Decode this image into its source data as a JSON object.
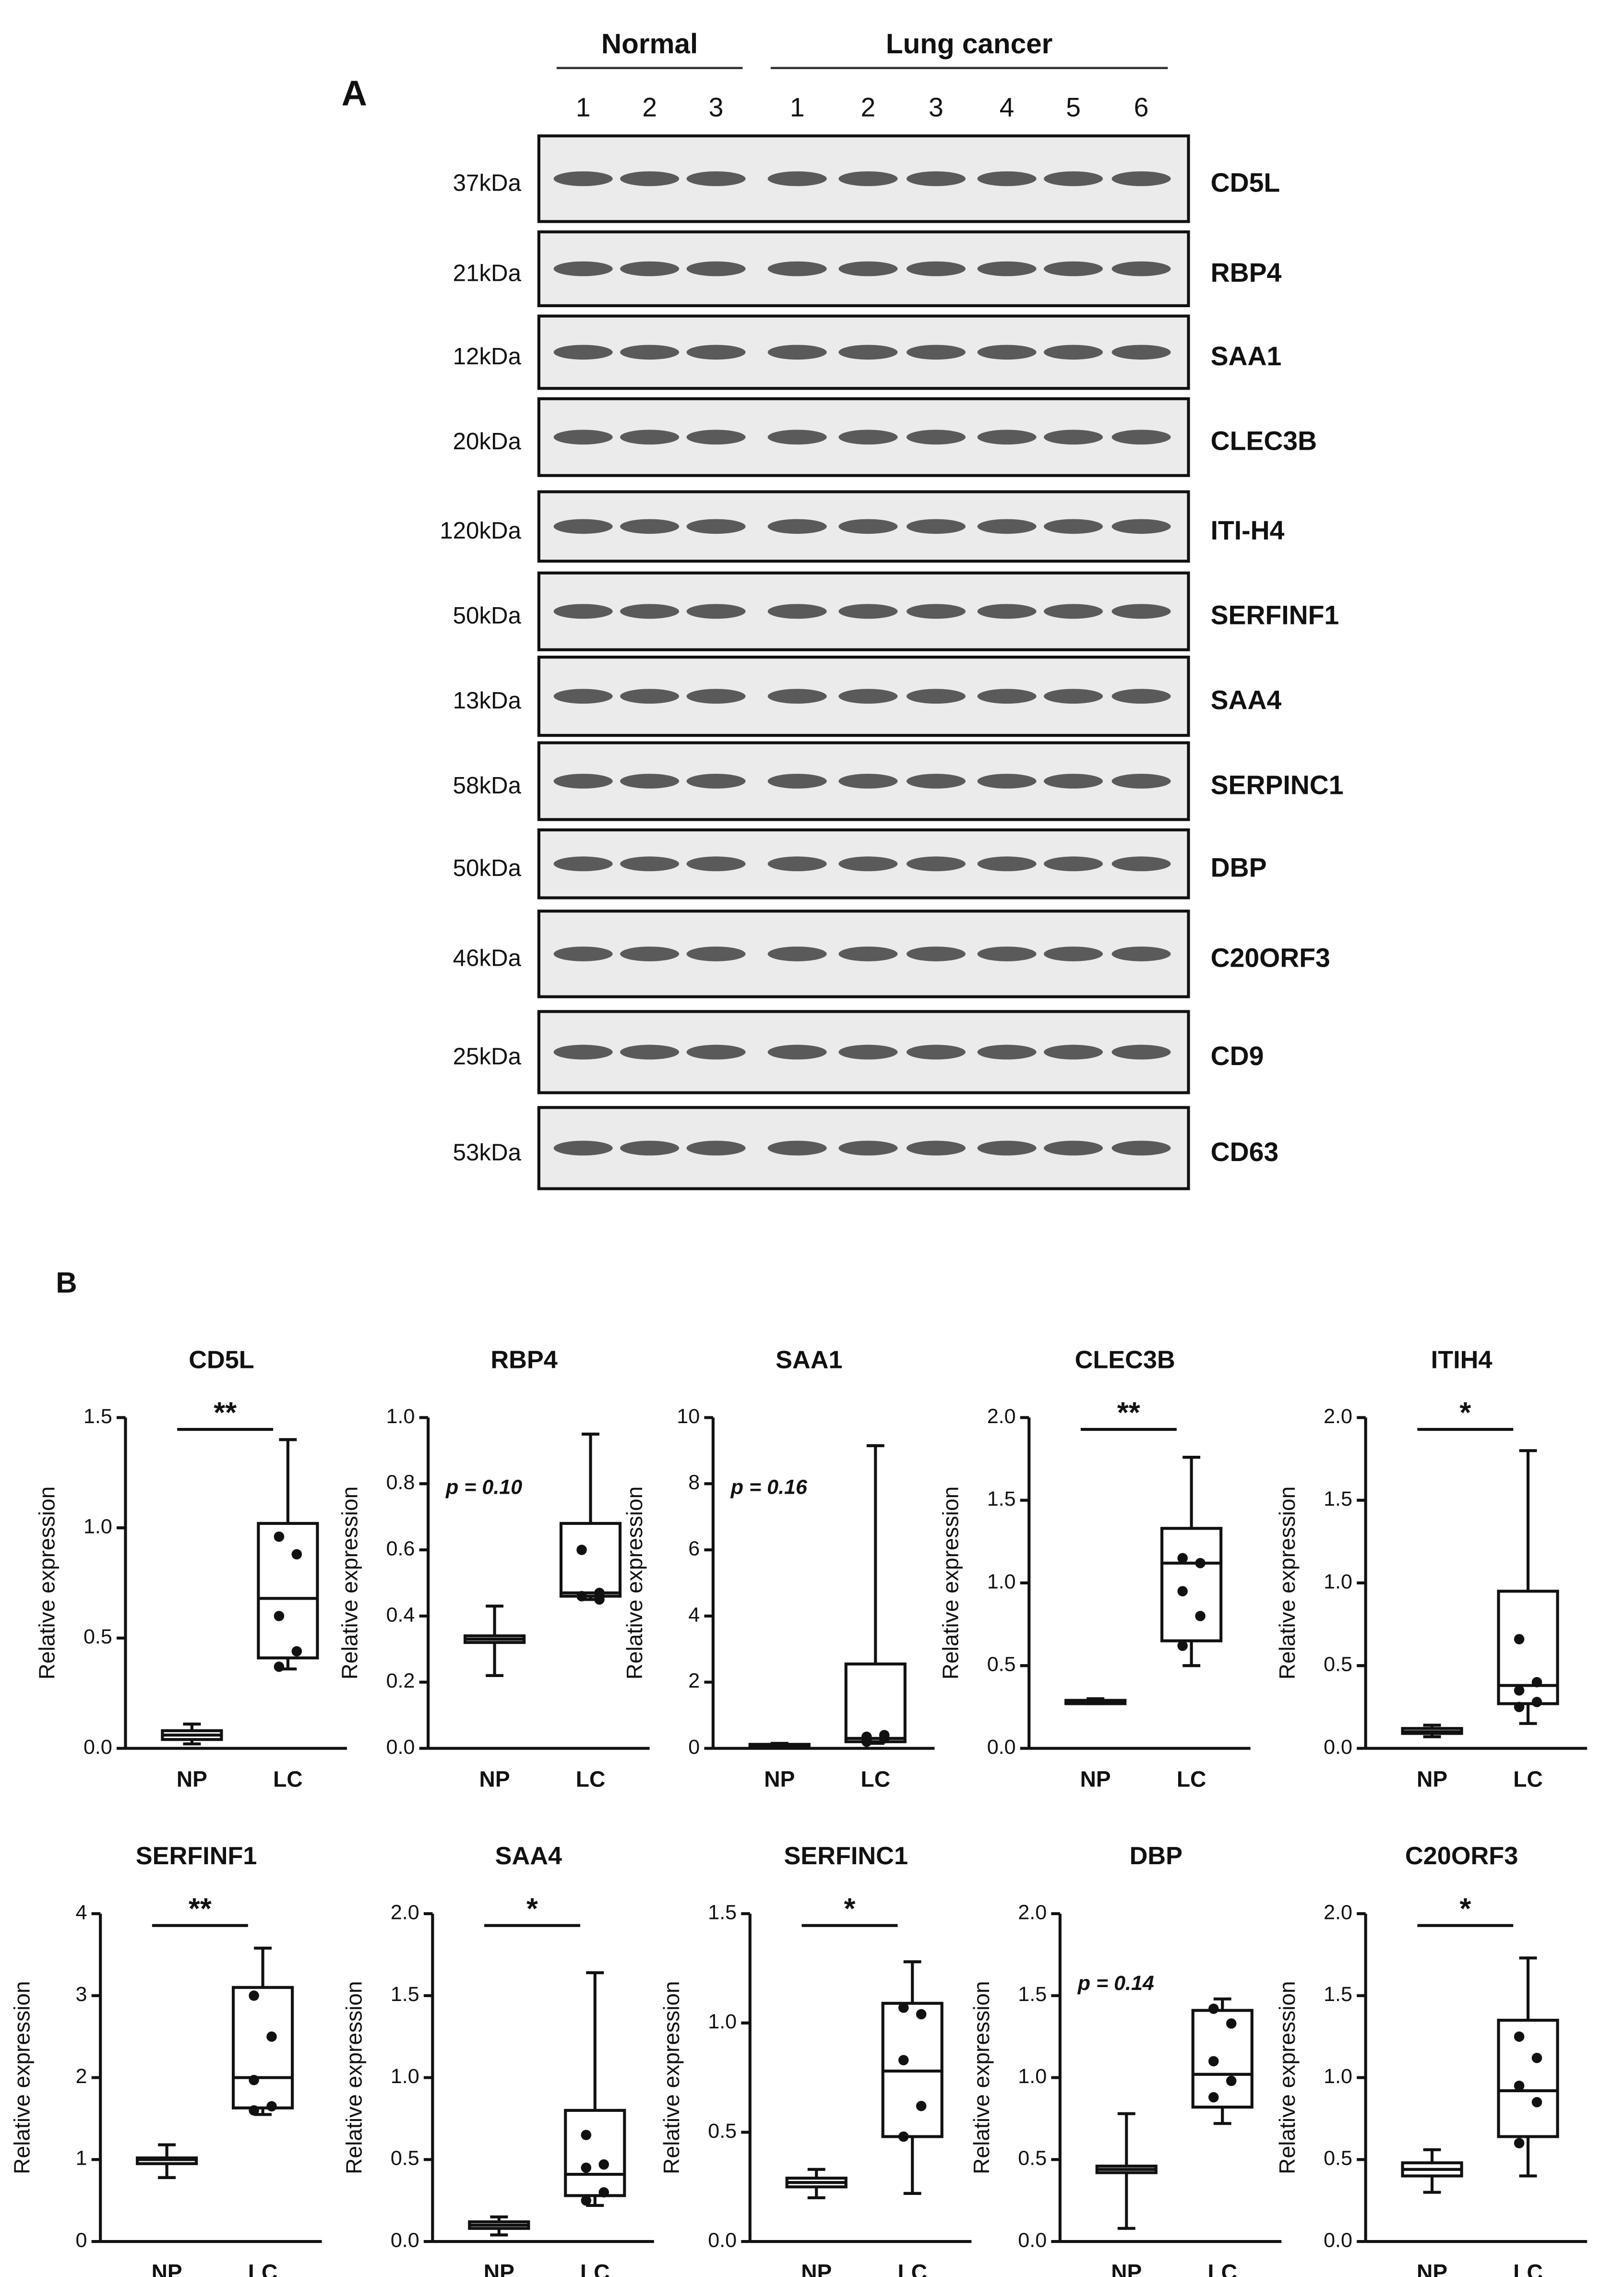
{
  "panel_a": {
    "label": "A",
    "groups": [
      "Normal",
      "Lung cancer"
    ],
    "lanes": [
      "1",
      "2",
      "3",
      "1",
      "2",
      "3",
      "4",
      "5",
      "6"
    ],
    "blots": [
      {
        "kda": "37kDa",
        "protein": "CD5L"
      },
      {
        "kda": "21kDa",
        "protein": "RBP4"
      },
      {
        "kda": "12kDa",
        "protein": "SAA1"
      },
      {
        "kda": "20kDa",
        "protein": "CLEC3B"
      },
      {
        "kda": "120kDa",
        "protein": "ITI-H4"
      },
      {
        "kda": "50kDa",
        "protein": "SERFINF1"
      },
      {
        "kda": "13kDa",
        "protein": "SAA4"
      },
      {
        "kda": "58kDa",
        "protein": "SERPINC1"
      },
      {
        "kda": "50kDa",
        "protein": "DBP"
      },
      {
        "kda": "46kDa",
        "protein": "C20ORF3"
      },
      {
        "kda": "25kDa",
        "protein": "CD9"
      },
      {
        "kda": "53kDa",
        "protein": "CD63"
      }
    ]
  },
  "panel_b": {
    "label": "B"
  },
  "chart_data": [
    {
      "type": "box",
      "title": "CD5L",
      "y_label": "Relative expression",
      "categories": [
        "NP",
        "LC"
      ],
      "ylim": [
        0,
        1.5
      ],
      "yticks": [
        {
          "value": 0,
          "label": "0.0"
        },
        0.5,
        {
          "value": 1,
          "label": "1.0"
        },
        1.5
      ],
      "annotation": "**",
      "significance_bar": true,
      "boxes": [
        {
          "min": 0.02,
          "q1": 0.04,
          "median": 0.06,
          "q3": 0.08,
          "max": 0.11,
          "points": []
        },
        {
          "min": 0.36,
          "q1": 0.41,
          "median": 0.68,
          "q3": 1.02,
          "max": 1.4,
          "points": [
            0.96,
            0.88,
            0.6,
            0.44,
            0.37
          ]
        }
      ]
    },
    {
      "type": "box",
      "title": "RBP4",
      "y_label": "Relative expression",
      "categories": [
        "NP",
        "LC"
      ],
      "ylim": [
        0,
        1
      ],
      "yticks": [
        {
          "value": 0,
          "label": "0.0"
        },
        0.2,
        0.4,
        0.6,
        0.8,
        {
          "value": 1,
          "label": "1.0"
        }
      ],
      "annotation": "p = 0.10",
      "significance_bar": false,
      "boxes": [
        {
          "min": 0.22,
          "q1": 0.32,
          "median": 0.33,
          "q3": 0.34,
          "max": 0.43,
          "points": []
        },
        {
          "min": 0.45,
          "q1": 0.46,
          "median": 0.47,
          "q3": 0.68,
          "max": 0.95,
          "points": [
            0.6,
            0.47,
            0.46,
            0.45,
            0.46
          ]
        }
      ]
    },
    {
      "type": "box",
      "title": "SAA1",
      "y_label": "Relative expression",
      "categories": [
        "NP",
        "LC"
      ],
      "ylim": [
        0,
        10
      ],
      "yticks": [
        0,
        2,
        4,
        6,
        8,
        10
      ],
      "annotation": "p = 0.16",
      "significance_bar": false,
      "boxes": [
        {
          "min": 0.05,
          "q1": 0.07,
          "median": 0.1,
          "q3": 0.12,
          "max": 0.15,
          "points": []
        },
        {
          "min": 0.15,
          "q1": 0.2,
          "median": 0.3,
          "q3": 2.55,
          "max": 9.15,
          "points": [
            0.2,
            0.3,
            0.35,
            0.4,
            0.25
          ]
        }
      ]
    },
    {
      "type": "box",
      "title": "CLEC3B",
      "y_label": "Relative expression",
      "categories": [
        "NP",
        "LC"
      ],
      "ylim": [
        0,
        2
      ],
      "yticks": [
        {
          "value": 0,
          "label": "0.0"
        },
        0.5,
        {
          "value": 1,
          "label": "1.0"
        },
        1.5,
        {
          "value": 2,
          "label": "2.0"
        }
      ],
      "annotation": "**",
      "significance_bar": true,
      "boxes": [
        {
          "min": 0.27,
          "q1": 0.27,
          "median": 0.28,
          "q3": 0.29,
          "max": 0.3,
          "points": []
        },
        {
          "min": 0.5,
          "q1": 0.65,
          "median": 1.12,
          "q3": 1.33,
          "max": 1.76,
          "points": [
            1.15,
            1.12,
            0.95,
            0.8,
            0.62
          ]
        }
      ]
    },
    {
      "type": "box",
      "title": "ITIH4",
      "y_label": "Relative expression",
      "categories": [
        "NP",
        "LC"
      ],
      "ylim": [
        0,
        2
      ],
      "yticks": [
        {
          "value": 0,
          "label": "0.0"
        },
        0.5,
        {
          "value": 1,
          "label": "1.0"
        },
        1.5,
        {
          "value": 2,
          "label": "2.0"
        }
      ],
      "annotation": "*",
      "significance_bar": true,
      "boxes": [
        {
          "min": 0.07,
          "q1": 0.09,
          "median": 0.1,
          "q3": 0.12,
          "max": 0.14,
          "points": []
        },
        {
          "min": 0.15,
          "q1": 0.27,
          "median": 0.38,
          "q3": 0.95,
          "max": 1.8,
          "points": [
            0.66,
            0.4,
            0.35,
            0.28,
            0.25
          ]
        }
      ]
    },
    {
      "type": "box",
      "title": "SERFINF1",
      "y_label": "Relative expression",
      "categories": [
        "NP",
        "LC"
      ],
      "ylim": [
        0,
        4
      ],
      "yticks": [
        0,
        1,
        2,
        3,
        4
      ],
      "annotation": "**",
      "significance_bar": true,
      "boxes": [
        {
          "min": 0.78,
          "q1": 0.95,
          "median": 1.0,
          "q3": 1.02,
          "max": 1.18,
          "points": []
        },
        {
          "min": 1.55,
          "q1": 1.63,
          "median": 2.0,
          "q3": 3.1,
          "max": 3.58,
          "points": [
            3.0,
            2.5,
            1.97,
            1.65,
            1.6
          ]
        }
      ]
    },
    {
      "type": "box",
      "title": "SAA4",
      "y_label": "Relative expression",
      "categories": [
        "NP",
        "LC"
      ],
      "ylim": [
        0,
        2
      ],
      "yticks": [
        {
          "value": 0,
          "label": "0.0"
        },
        0.5,
        {
          "value": 1,
          "label": "1.0"
        },
        1.5,
        {
          "value": 2,
          "label": "2.0"
        }
      ],
      "annotation": "*",
      "significance_bar": true,
      "boxes": [
        {
          "min": 0.04,
          "q1": 0.08,
          "median": 0.1,
          "q3": 0.12,
          "max": 0.15,
          "points": []
        },
        {
          "min": 0.22,
          "q1": 0.28,
          "median": 0.41,
          "q3": 0.8,
          "max": 1.64,
          "points": [
            0.65,
            0.47,
            0.45,
            0.3,
            0.25
          ]
        }
      ]
    },
    {
      "type": "box",
      "title": "SERFINC1",
      "y_label": "Relative expression",
      "categories": [
        "NP",
        "LC"
      ],
      "ylim": [
        0,
        1.5
      ],
      "yticks": [
        {
          "value": 0,
          "label": "0.0"
        },
        0.5,
        {
          "value": 1,
          "label": "1.0"
        },
        1.5
      ],
      "annotation": "*",
      "significance_bar": true,
      "boxes": [
        {
          "min": 0.2,
          "q1": 0.25,
          "median": 0.27,
          "q3": 0.29,
          "max": 0.33,
          "points": []
        },
        {
          "min": 0.22,
          "q1": 0.48,
          "median": 0.78,
          "q3": 1.09,
          "max": 1.28,
          "points": [
            1.07,
            1.04,
            0.83,
            0.62,
            0.48
          ]
        }
      ]
    },
    {
      "type": "box",
      "title": "DBP",
      "y_label": "Relative expression",
      "categories": [
        "NP",
        "LC"
      ],
      "ylim": [
        0,
        2
      ],
      "yticks": [
        {
          "value": 0,
          "label": "0.0"
        },
        0.5,
        {
          "value": 1,
          "label": "1.0"
        },
        1.5,
        {
          "value": 2,
          "label": "2.0"
        }
      ],
      "annotation": "p = 0.14",
      "significance_bar": false,
      "boxes": [
        {
          "min": 0.08,
          "q1": 0.42,
          "median": 0.44,
          "q3": 0.46,
          "max": 0.78,
          "points": []
        },
        {
          "min": 0.72,
          "q1": 0.82,
          "median": 1.02,
          "q3": 1.41,
          "max": 1.48,
          "points": [
            1.42,
            1.33,
            1.1,
            0.98,
            0.88
          ]
        }
      ]
    },
    {
      "type": "box",
      "title": "C20ORF3",
      "y_label": "Relative expression",
      "categories": [
        "NP",
        "LC"
      ],
      "ylim": [
        0,
        2
      ],
      "yticks": [
        {
          "value": 0,
          "label": "0.0"
        },
        0.5,
        {
          "value": 1,
          "label": "1.0"
        },
        1.5,
        {
          "value": 2,
          "label": "2.0"
        }
      ],
      "annotation": "*",
      "significance_bar": true,
      "boxes": [
        {
          "min": 0.3,
          "q1": 0.4,
          "median": 0.44,
          "q3": 0.48,
          "max": 0.56,
          "points": []
        },
        {
          "min": 0.4,
          "q1": 0.64,
          "median": 0.92,
          "q3": 1.35,
          "max": 1.73,
          "points": [
            1.25,
            1.12,
            0.95,
            0.85,
            0.6
          ]
        }
      ]
    }
  ]
}
